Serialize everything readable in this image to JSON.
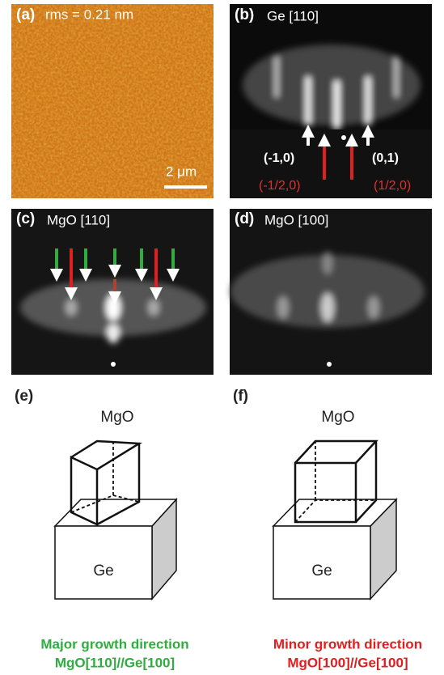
{
  "panels": [
    {
      "label": "(a)",
      "title": "rms = 0.21 nm",
      "scale_bar": "2 μm"
    },
    {
      "label": "(b)",
      "title": "Ge [110]",
      "spot_labels": [
        "(-1,0)",
        "(0,1)",
        "(-1/2,0)",
        "(1/2,0)"
      ]
    },
    {
      "label": "(c)",
      "title": "MgO [110]"
    },
    {
      "label": "(d)",
      "title": "MgO [100]"
    }
  ],
  "diagrams": [
    {
      "label": "(e)",
      "top": "MgO",
      "bottom": "Ge",
      "caption": [
        "Major growth direction",
        "MgO[110]//Ge[100]"
      ]
    },
    {
      "label": "(f)",
      "top": "MgO",
      "bottom": "Ge",
      "caption": [
        "Minor growth direction",
        "MgO[100]//Ge[100]"
      ]
    }
  ]
}
